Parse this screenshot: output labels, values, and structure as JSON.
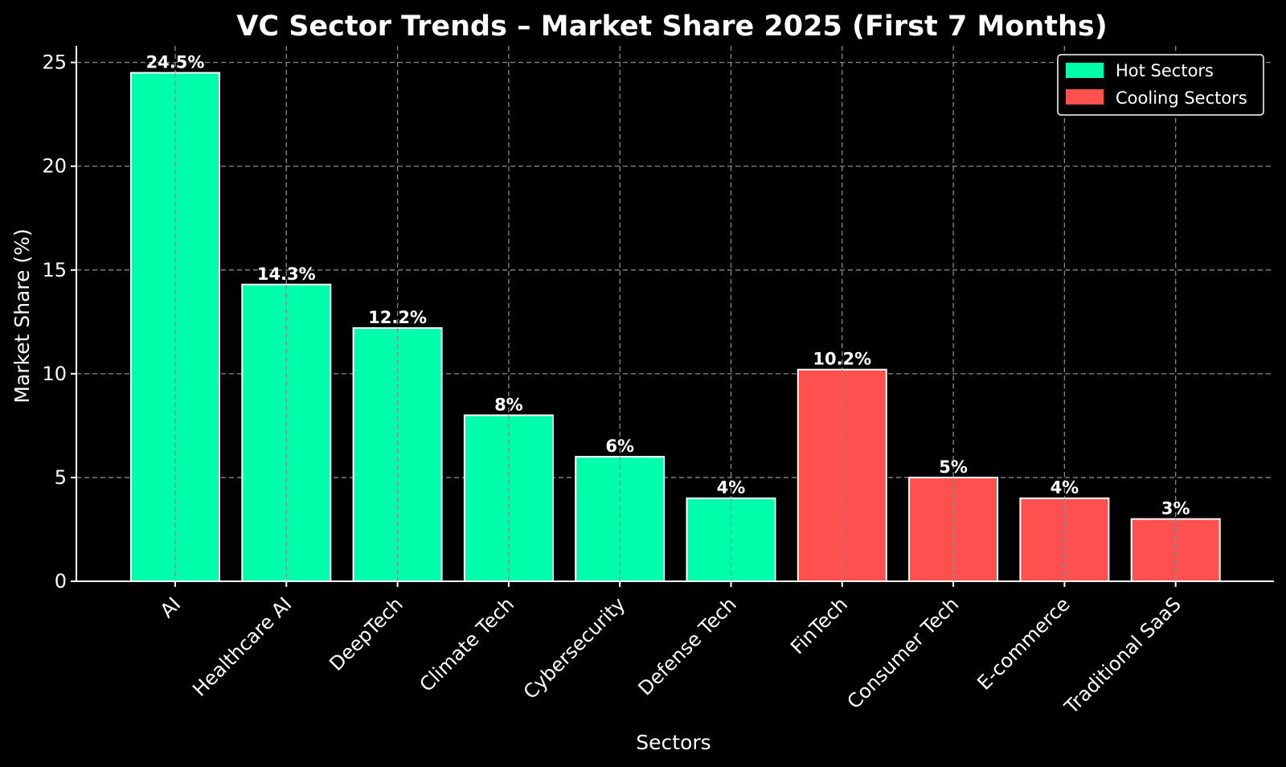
{
  "chart_data": {
    "type": "bar",
    "title": "VC Sector Trends – Market Share 2025 (First 7 Months)",
    "xlabel": "Sectors",
    "ylabel": "Market Share (%)",
    "ylim": [
      0,
      25.8
    ],
    "yticks": [
      0,
      5,
      10,
      15,
      20,
      25
    ],
    "grid": true,
    "legend_position": "top-right",
    "categories": [
      "AI",
      "Healthcare AI",
      "DeepTech",
      "Climate Tech",
      "Cybersecurity",
      "Defense Tech",
      "FinTech",
      "Consumer Tech",
      "E-commerce",
      "Traditional SaaS"
    ],
    "values": [
      24.5,
      14.3,
      12.2,
      8,
      6,
      4,
      10.2,
      5,
      4,
      3
    ],
    "data_labels": [
      "24.5%",
      "14.3%",
      "12.2%",
      "8%",
      "6%",
      "4%",
      "10.2%",
      "5%",
      "4%",
      "3%"
    ],
    "groups": [
      "hot",
      "hot",
      "hot",
      "hot",
      "hot",
      "hot",
      "cooling",
      "cooling",
      "cooling",
      "cooling"
    ],
    "series": [
      {
        "key": "hot",
        "name": "Hot Sectors",
        "color": "#00ffaa"
      },
      {
        "key": "cooling",
        "name": "Cooling Sectors",
        "color": "#ff5050"
      }
    ]
  }
}
